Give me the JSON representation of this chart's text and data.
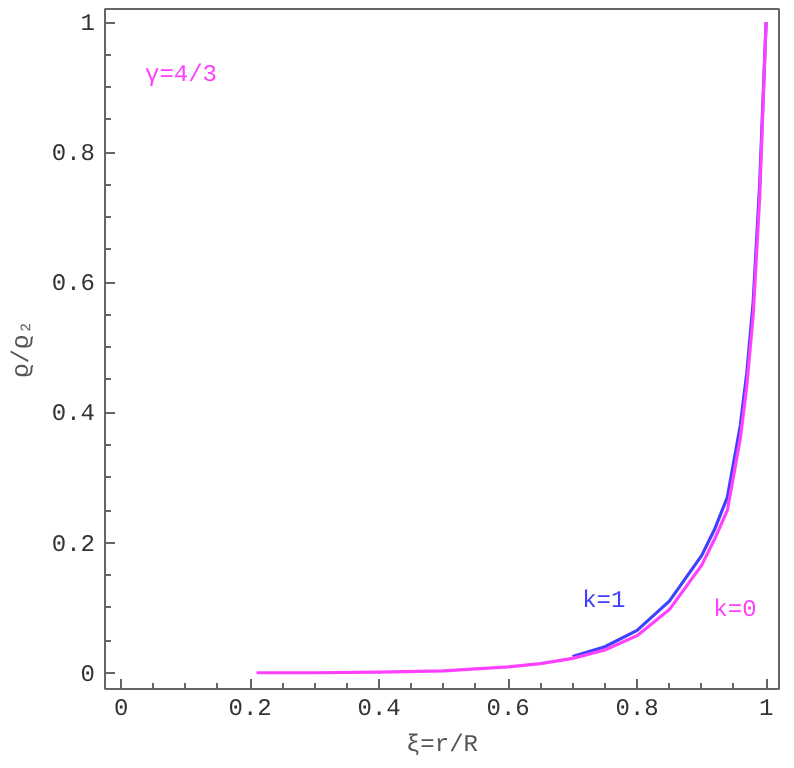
{
  "chart_data": {
    "type": "line",
    "xlabel": "ξ=r/R",
    "ylabel": "ϱ/ϱ₂",
    "xlim": [
      -0.025,
      1.02
    ],
    "ylim": [
      -0.025,
      1.02
    ],
    "xticks": [
      0,
      0.2,
      0.4,
      0.6,
      0.8,
      1
    ],
    "yticks": [
      0,
      0.2,
      0.4,
      0.6,
      0.8,
      1
    ],
    "grid": false,
    "marker": "none",
    "line_style": "solid",
    "x": [
      0.21,
      0.3,
      0.4,
      0.5,
      0.6,
      0.65,
      0.7,
      0.75,
      0.8,
      0.85,
      0.9,
      0.92,
      0.94,
      0.96,
      0.97,
      0.98,
      0.99,
      1.0
    ],
    "series": [
      {
        "name": "k=1",
        "color": "#4040ff",
        "x": [
          0.7,
          0.75,
          0.8,
          0.85,
          0.9,
          0.92,
          0.94,
          0.96,
          0.97,
          0.98,
          0.99,
          1.0
        ],
        "values": [
          0.025,
          0.04,
          0.065,
          0.11,
          0.18,
          0.22,
          0.27,
          0.38,
          0.46,
          0.57,
          0.75,
          1.0
        ]
      },
      {
        "name": "k=0",
        "color": "#ff40ff",
        "values": [
          0,
          0,
          0.001,
          0.003,
          0.009,
          0.014,
          0.022,
          0.035,
          0.057,
          0.097,
          0.165,
          0.205,
          0.25,
          0.36,
          0.44,
          0.55,
          0.73,
          1.0
        ]
      }
    ],
    "annotations": [
      "γ=4/3"
    ]
  }
}
